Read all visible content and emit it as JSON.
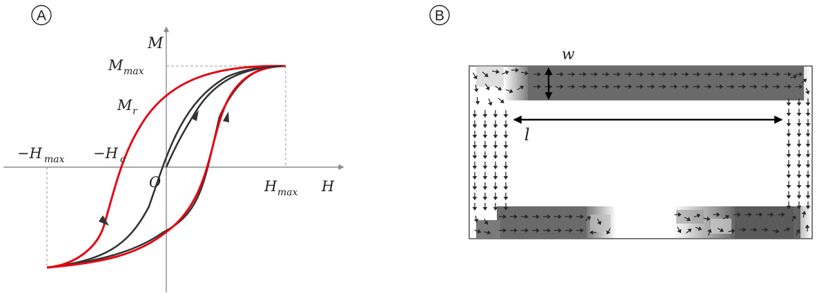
{
  "panels": {
    "a": {
      "badge": "A",
      "labels": {
        "m_axis": "M",
        "h_axis": "H",
        "m_max": "M",
        "m_max_sub": "max",
        "m_r": "M",
        "m_r_sub": "r",
        "neg_h_max": "−H",
        "neg_h_max_sub": "max",
        "neg_h_c": "−H",
        "neg_h_c_sub": "c",
        "origin": "O",
        "h_max": "H",
        "h_max_sub": "max"
      },
      "colors": {
        "loop": "#e30613",
        "virgin_curve": "#333333",
        "axis": "#8a8a8a",
        "guide": "#9a9a9a"
      }
    },
    "b": {
      "badge": "B",
      "labels": {
        "width": "w",
        "length": "l"
      },
      "colors": {
        "domain_dark": "#5a5a5a",
        "domain_light": "#cfcfcf",
        "vector": "#2a2a2a",
        "frame": "#444444"
      }
    }
  }
}
